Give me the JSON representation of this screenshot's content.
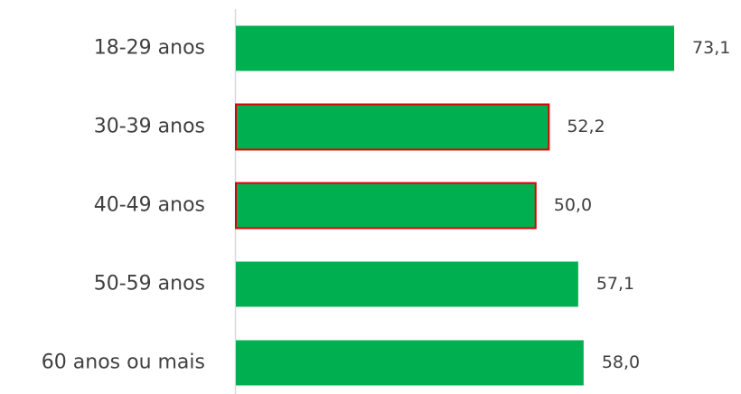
{
  "chart_data": {
    "type": "barh",
    "categories": [
      "18-29 anos",
      "30-39 anos",
      "40-49 anos",
      "50-59 anos",
      "60 anos ou mais"
    ],
    "values": [
      73.1,
      52.2,
      50.0,
      57.1,
      58.0
    ],
    "value_labels": [
      "73,1",
      "52,2",
      "50,0",
      "57,1",
      "58,0"
    ],
    "color": "#00b050",
    "edge_colors": [
      null,
      "#e00000",
      "#e00000",
      null,
      null
    ]
  }
}
